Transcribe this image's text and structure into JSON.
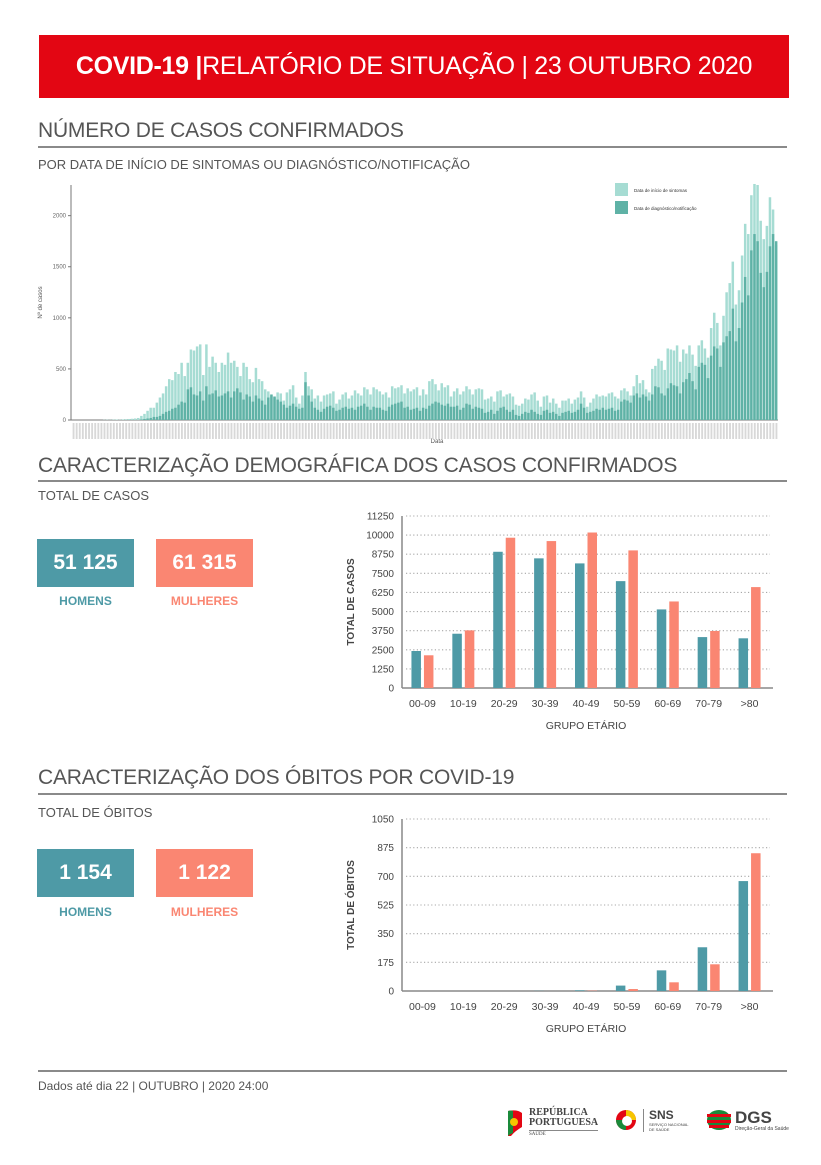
{
  "banner": {
    "bold": "COVID-19 |",
    "rest": " RELATÓRIO DE SITUAÇÃO | 23 OUTUBRO 2020",
    "color": "#e30613"
  },
  "section1": {
    "title": "NÚMERO DE CASOS CONFIRMADOS",
    "subtitle": "POR DATA DE INÍCIO DE SINTOMAS OU DIAGNÓSTICO/NOTIFICAÇÃO"
  },
  "section2": {
    "title": "CARACTERIZAÇÃO DEMOGRÁFICA DOS CASOS CONFIRMADOS",
    "subtitle": "TOTAL DE CASOS",
    "men_value": "51 125",
    "men_label": "HOMENS",
    "women_value": "61 315",
    "women_label": "MULHERES"
  },
  "section3": {
    "title": "CARACTERIZAÇÃO DOS ÓBITOS POR COVID-19",
    "subtitle": "TOTAL DE ÓBITOS",
    "men_value": "1 154",
    "men_label": "HOMENS",
    "women_value": "1 122",
    "women_label": "MULHERES"
  },
  "footer": {
    "text": "Dados até dia 22 | OUTUBRO | 2020 24:00",
    "logos": [
      {
        "name": "republica-portuguesa-logo",
        "line1": "REPÚBLICA",
        "line2": "PORTUGUESA",
        "line3": "SAÚDE"
      },
      {
        "name": "sns-logo",
        "line1": "SNS",
        "line2": "SERVIÇO NACIONAL",
        "line3": "DE SAÚDE"
      },
      {
        "name": "dgs-logo",
        "line1": "DGS",
        "line2": "Direção-Geral da Saúde"
      }
    ]
  },
  "colors": {
    "men": "#4e9aa6",
    "women": "#fa8672",
    "onset": "#a6dcd3",
    "diagnosis": "#5fb2a6"
  },
  "chart_data": [
    {
      "type": "bar",
      "title": "",
      "xlabel": "Data",
      "ylabel": "Nº de casos",
      "ylim": [
        0,
        2300
      ],
      "yticks": [
        0,
        500,
        1000,
        1500,
        2000
      ],
      "grid": false,
      "legend_position": "top-right",
      "x_note": "daily dates, ~late February to 22 October 2020 (tick labels illegible)",
      "series": [
        {
          "name": "Data de início de sintomas",
          "values": [
            0,
            0,
            0,
            0,
            0,
            0,
            0,
            0,
            0,
            0,
            2,
            3,
            2,
            4,
            5,
            3,
            6,
            8,
            10,
            12,
            15,
            20,
            40,
            60,
            90,
            120,
            120,
            170,
            220,
            260,
            330,
            400,
            390,
            470,
            450,
            560,
            430,
            560,
            690,
            680,
            720,
            740,
            440,
            740,
            520,
            620,
            560,
            470,
            560,
            540,
            660,
            560,
            580,
            520,
            430,
            560,
            520,
            400,
            370,
            510,
            400,
            380,
            300,
            280,
            240,
            220,
            270,
            260,
            190,
            270,
            300,
            340,
            220,
            160,
            240,
            470,
            330,
            300,
            210,
            240,
            180,
            240,
            250,
            260,
            280,
            160,
            200,
            250,
            270,
            210,
            240,
            290,
            260,
            240,
            320,
            300,
            250,
            320,
            300,
            280,
            250,
            270,
            220,
            330,
            310,
            320,
            340,
            260,
            310,
            280,
            300,
            320,
            240,
            300,
            250,
            380,
            400,
            350,
            290,
            360,
            320,
            340,
            230,
            280,
            310,
            250,
            280,
            330,
            300,
            250,
            300,
            310,
            300,
            200,
            210,
            230,
            180,
            280,
            290,
            230,
            250,
            260,
            230,
            150,
            140,
            160,
            210,
            200,
            250,
            270,
            190,
            130,
            230,
            240,
            170,
            210,
            160,
            120,
            190,
            190,
            210,
            160,
            200,
            220,
            280,
            220,
            130,
            170,
            210,
            250,
            230,
            240,
            230,
            260,
            270,
            230,
            210,
            290,
            310,
            280,
            240,
            330,
            440,
            360,
            390,
            300,
            270,
            500,
            530,
            600,
            580,
            490,
            700,
            690,
            680,
            730,
            570,
            690,
            650,
            730,
            640,
            530,
            730,
            780,
            700,
            610,
            900,
            1050,
            950,
            730,
            1020,
            1250,
            1340,
            1550,
            1130,
            1270,
            1610,
            1920,
            1820,
            2200,
            2310,
            2300,
            1950,
            1770,
            1900,
            2180,
            2060,
            1710
          ],
          "color": "#a6dcd3"
        },
        {
          "name": "Data de diagnóstico/notificação",
          "values": [
            0,
            0,
            0,
            0,
            0,
            0,
            0,
            0,
            0,
            0,
            0,
            0,
            0,
            0,
            0,
            0,
            0,
            0,
            0,
            0,
            0,
            0,
            5,
            10,
            15,
            20,
            30,
            30,
            40,
            60,
            80,
            90,
            110,
            120,
            150,
            180,
            170,
            300,
            320,
            250,
            240,
            280,
            190,
            330,
            250,
            260,
            290,
            230,
            240,
            260,
            280,
            220,
            280,
            310,
            270,
            200,
            250,
            230,
            180,
            240,
            210,
            190,
            150,
            220,
            250,
            230,
            200,
            180,
            150,
            120,
            140,
            160,
            130,
            110,
            120,
            370,
            240,
            180,
            120,
            100,
            80,
            110,
            130,
            140,
            120,
            90,
            100,
            120,
            130,
            110,
            120,
            100,
            130,
            140,
            160,
            130,
            100,
            130,
            120,
            120,
            100,
            90,
            130,
            150,
            160,
            170,
            180,
            120,
            130,
            100,
            110,
            120,
            90,
            120,
            110,
            140,
            160,
            180,
            170,
            150,
            140,
            160,
            130,
            130,
            140,
            100,
            120,
            160,
            150,
            110,
            130,
            120,
            110,
            70,
            80,
            100,
            60,
            90,
            120,
            130,
            100,
            80,
            100,
            50,
            40,
            60,
            80,
            70,
            100,
            80,
            60,
            50,
            90,
            100,
            70,
            80,
            60,
            40,
            70,
            80,
            90,
            70,
            80,
            100,
            160,
            120,
            70,
            80,
            90,
            110,
            100,
            120,
            100,
            110,
            120,
            90,
            100,
            180,
            200,
            190,
            170,
            240,
            260,
            220,
            250,
            230,
            190,
            250,
            330,
            320,
            260,
            240,
            310,
            360,
            340,
            330,
            260,
            370,
            400,
            460,
            380,
            300,
            520,
            560,
            540,
            410,
            630,
            720,
            700,
            520,
            760,
            820,
            870,
            1090,
            770,
            900,
            1150,
            1400,
            1220,
            1660,
            1820,
            1750,
            1440,
            1300,
            1450,
            1700,
            1820,
            1750
          ]
        }
      ]
    },
    {
      "type": "bar",
      "title": "",
      "xlabel": "GRUPO ETÁRIO",
      "ylabel": "TOTAL DE CASOS",
      "ylim": [
        0,
        11250
      ],
      "yticks": [
        0,
        1250,
        2500,
        3750,
        5000,
        6250,
        7500,
        8750,
        10000,
        11250
      ],
      "grid": true,
      "categories": [
        "00-09",
        "10-19",
        "20-29",
        "30-39",
        "40-49",
        "50-59",
        "60-69",
        "70-79",
        ">80"
      ],
      "series": [
        {
          "name": "Homens",
          "values": [
            2420,
            3550,
            8910,
            8480,
            8150,
            6990,
            5140,
            3330,
            3250
          ]
        },
        {
          "name": "Mulheres",
          "values": [
            2140,
            3770,
            9830,
            9610,
            10170,
            9000,
            5660,
            3730,
            6600
          ]
        }
      ]
    },
    {
      "type": "bar",
      "title": "",
      "xlabel": "GRUPO ETÁRIO",
      "ylabel": "TOTAL DE ÓBITOS",
      "ylim": [
        0,
        1050
      ],
      "yticks": [
        0,
        175,
        350,
        525,
        700,
        875,
        1050
      ],
      "grid": true,
      "categories": [
        "00-09",
        "10-19",
        "20-29",
        "30-39",
        "40-49",
        "50-59",
        "60-69",
        "70-79",
        ">80"
      ],
      "series": [
        {
          "name": "Homens",
          "values": [
            0,
            0,
            0,
            1,
            4,
            33,
            126,
            267,
            671
          ]
        },
        {
          "name": "Mulheres",
          "values": [
            0,
            0,
            0,
            0,
            2,
            12,
            53,
            163,
            841
          ]
        }
      ]
    }
  ]
}
